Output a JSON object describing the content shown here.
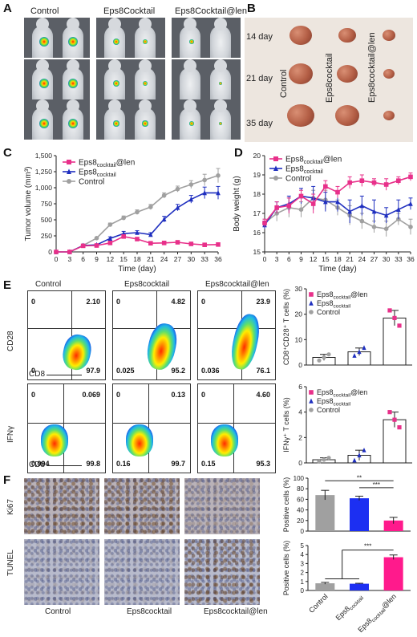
{
  "panels": {
    "A": "A",
    "B": "B",
    "C": "C",
    "D": "D",
    "E": "E",
    "F": "F"
  },
  "panelA": {
    "groups": [
      "Control",
      "Eps8Cocktail",
      "Eps8Cocktail@len"
    ]
  },
  "panelB": {
    "days": [
      "14 day",
      "21 day",
      "35 day"
    ],
    "groups": [
      "Control",
      "Eps8cocktail",
      "Eps8cocktail@len"
    ]
  },
  "groups": {
    "control": "Control",
    "cocktail": "Eps8cocktail",
    "cocktail_len": "Eps8cocktail@len"
  },
  "flow": {
    "cd28": {
      "ylabel": "CD28",
      "xlabel": "CD8",
      "quadrants": [
        {
          "ul": "0",
          "ur": "2.10",
          "ll": "0",
          "lr": "97.9"
        },
        {
          "ul": "0",
          "ur": "4.82",
          "ll": "0.025",
          "lr": "95.2"
        },
        {
          "ul": "0",
          "ur": "23.9",
          "ll": "0.036",
          "lr": "76.1"
        }
      ]
    },
    "ifng": {
      "ylabel": "IFNγ",
      "xlabel": "CD8",
      "quadrants": [
        {
          "ul": "0",
          "ur": "0.069",
          "ll": "0.094",
          "lr": "99.8"
        },
        {
          "ul": "0",
          "ur": "0.13",
          "ll": "0.16",
          "lr": "99.7"
        },
        {
          "ul": "0",
          "ur": "4.60",
          "ll": "0.15",
          "lr": "95.3"
        }
      ]
    }
  },
  "ihc": {
    "row_labels": [
      "Ki67",
      "TUNEL"
    ],
    "col_labels": [
      "Control",
      "Eps8cocktail",
      "Eps8cocktail@len"
    ]
  },
  "chart_data": [
    {
      "id": "C",
      "type": "line",
      "xlabel": "Time (day)",
      "ylabel": "Tumor volume (mm³)",
      "x": [
        0,
        3,
        6,
        9,
        12,
        15,
        18,
        21,
        24,
        27,
        30,
        33,
        36
      ],
      "xlim": [
        0,
        36
      ],
      "ylim": [
        0,
        1500
      ],
      "yticks": [
        "0",
        "250",
        "500",
        "750",
        "1,000",
        "1,250",
        "1,500"
      ],
      "series": [
        {
          "name": "Eps8cocktail@len",
          "color": "#e8308a",
          "marker": "square",
          "values": [
            0,
            0,
            95,
            100,
            140,
            240,
            200,
            135,
            140,
            150,
            125,
            110,
            115
          ],
          "err": [
            0,
            0,
            10,
            15,
            20,
            30,
            25,
            20,
            20,
            20,
            20,
            15,
            15
          ]
        },
        {
          "name": "Eps8cocktail",
          "color": "#1f2fbf",
          "marker": "triangle",
          "values": [
            0,
            0,
            100,
            110,
            210,
            285,
            300,
            270,
            510,
            690,
            820,
            920,
            920
          ],
          "err": [
            0,
            0,
            10,
            15,
            25,
            35,
            30,
            30,
            45,
            50,
            60,
            90,
            100
          ]
        },
        {
          "name": "Control",
          "color": "#a0a0a0",
          "marker": "circle",
          "values": [
            0,
            0,
            100,
            215,
            425,
            530,
            620,
            700,
            880,
            980,
            1050,
            1120,
            1190
          ],
          "err": [
            0,
            0,
            10,
            15,
            25,
            30,
            35,
            40,
            40,
            45,
            60,
            90,
            110
          ]
        }
      ]
    },
    {
      "id": "D",
      "type": "line",
      "xlabel": "Time (day)",
      "ylabel": "Body weight (g)",
      "x": [
        0,
        3,
        6,
        9,
        12,
        15,
        18,
        21,
        24,
        27,
        30,
        33,
        36
      ],
      "xlim": [
        0,
        36
      ],
      "ylim": [
        15,
        20
      ],
      "yticks": [
        "15",
        "16",
        "17",
        "18",
        "19",
        "20"
      ],
      "series": [
        {
          "name": "Eps8cocktail@len",
          "color": "#e8308a",
          "marker": "square",
          "values": [
            16.5,
            17.3,
            17.4,
            17.9,
            17.5,
            18.4,
            18.1,
            18.6,
            18.7,
            18.6,
            18.5,
            18.7,
            18.9
          ],
          "err": [
            0.2,
            0.3,
            0.4,
            0.3,
            0.5,
            0.3,
            0.3,
            0.3,
            0.3,
            0.2,
            0.3,
            0.2,
            0.2
          ]
        },
        {
          "name": "Eps8cocktail",
          "color": "#1f2fbf",
          "marker": "triangle",
          "values": [
            16.4,
            17.3,
            17.5,
            17.9,
            17.8,
            17.6,
            17.6,
            17.1,
            17.4,
            17.1,
            16.9,
            17.2,
            17.5
          ],
          "err": [
            0.2,
            0.3,
            0.4,
            0.4,
            0.6,
            0.5,
            0.5,
            0.6,
            0.5,
            0.6,
            0.4,
            0.5,
            0.3
          ]
        },
        {
          "name": "Control",
          "color": "#a0a0a0",
          "marker": "circle",
          "values": [
            16.5,
            17.0,
            17.3,
            17.2,
            17.8,
            17.7,
            17.3,
            16.9,
            16.6,
            16.3,
            16.2,
            16.7,
            16.3
          ],
          "err": [
            0.2,
            0.4,
            0.5,
            0.4,
            0.4,
            0.5,
            0.4,
            0.5,
            0.4,
            0.3,
            0.4,
            0.3,
            0.4
          ]
        }
      ]
    },
    {
      "id": "E1",
      "type": "bar",
      "ylabel": "CD8⁺CD28⁺ T cells (%)",
      "ylim": [
        0,
        30
      ],
      "yticks": [
        "0",
        "10",
        "20",
        "30"
      ],
      "series": [
        {
          "name": "Eps8cocktail@len",
          "color": "#e8308a",
          "marker": "square",
          "value": 18.5,
          "err": 3.0,
          "points": [
            21.5,
            18.5,
            15.5
          ]
        },
        {
          "name": "Eps8cocktail",
          "color": "#1f2fbf",
          "marker": "triangle",
          "value": 5.2,
          "err": 1.5,
          "points": [
            3.7,
            5.2,
            6.8
          ]
        },
        {
          "name": "Control",
          "color": "#a0a0a0",
          "marker": "circle",
          "value": 3.0,
          "err": 1.2,
          "points": [
            1.8,
            3.0,
            4.2
          ]
        }
      ],
      "bar_order": [
        "Control",
        "Eps8cocktail",
        "Eps8cocktail@len"
      ]
    },
    {
      "id": "E2",
      "type": "bar",
      "ylabel": "IFNγ⁺ T cells (%)",
      "ylim": [
        0,
        6
      ],
      "yticks": [
        "0",
        "2",
        "4",
        "6"
      ],
      "series": [
        {
          "name": "Eps8cocktail@len",
          "color": "#e8308a",
          "marker": "square",
          "value": 3.4,
          "err": 0.6,
          "points": [
            4.0,
            3.4,
            2.8
          ]
        },
        {
          "name": "Eps8cocktail",
          "color": "#1f2fbf",
          "marker": "triangle",
          "value": 0.6,
          "err": 0.4,
          "points": [
            0.2,
            0.6,
            1.0
          ]
        },
        {
          "name": "Control",
          "color": "#a0a0a0",
          "marker": "circle",
          "value": 0.25,
          "err": 0.15,
          "points": [
            0.1,
            0.25,
            0.4
          ]
        }
      ],
      "bar_order": [
        "Control",
        "Eps8cocktail",
        "Eps8cocktail@len"
      ]
    },
    {
      "id": "F1",
      "type": "bar",
      "ylabel": "Positive cells (%)",
      "ylim": [
        0,
        100
      ],
      "yticks": [
        "0",
        "20",
        "40",
        "60",
        "80",
        "100"
      ],
      "categories": [
        "Control",
        "Eps8cocktail",
        "Eps8cocktail@len"
      ],
      "values": [
        68,
        62,
        20
      ],
      "err": [
        9,
        4,
        6
      ],
      "colors": [
        "#a0a0a0",
        "#1c2ff2",
        "#ff1a8c"
      ],
      "annotations": [
        "**",
        "***"
      ]
    },
    {
      "id": "F2",
      "type": "bar",
      "ylabel": "Positive cells (%)",
      "ylim": [
        0,
        5
      ],
      "yticks": [
        "0",
        "1",
        "2",
        "3",
        "4",
        "5"
      ],
      "categories": [
        "Control",
        "Eps8cocktail",
        "Eps8cocktail@len"
      ],
      "values": [
        0.8,
        0.75,
        3.7
      ],
      "err": [
        0.1,
        0.05,
        0.25
      ],
      "colors": [
        "#a0a0a0",
        "#1c2ff2",
        "#ff1a8c"
      ],
      "annotations": [
        "***"
      ]
    }
  ]
}
